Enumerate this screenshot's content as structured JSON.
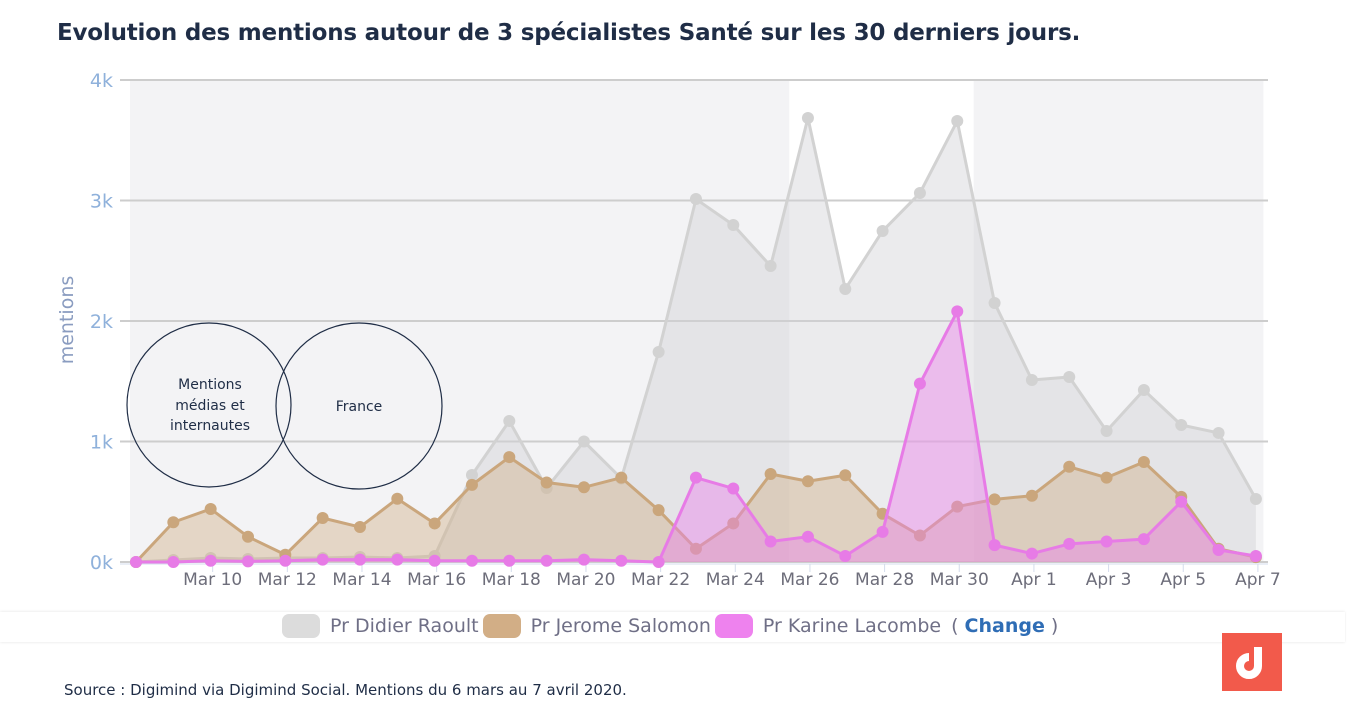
{
  "title": "Evolution des mentions autour de 3 spécialistes Santé sur les 30 derniers jours.",
  "venn": {
    "left_lines": [
      "Mentions",
      "médias et",
      "internautes"
    ],
    "right_label": "France"
  },
  "legend": {
    "change_open": "(",
    "change_label": "Change",
    "change_close": ")"
  },
  "source": "Source : Digimind via Digimind Social. Mentions du 6 mars au 7 avril 2020.",
  "logo_icon": "digimind-logo-icon",
  "chart_data": {
    "type": "area",
    "title": "Evolution des mentions autour de 3 spécialistes Santé sur les 30 derniers jours.",
    "xlabel": "",
    "ylabel": "mentions",
    "ylim": [
      0,
      4000
    ],
    "yticks": [
      0,
      1000,
      2000,
      3000,
      4000
    ],
    "ytick_labels": [
      "0k",
      "1k",
      "2k",
      "3k",
      "4k"
    ],
    "grid": true,
    "legend_position": "bottom",
    "x": [
      "Mar 8",
      "Mar 9",
      "Mar 10",
      "Mar 11",
      "Mar 12",
      "Mar 13",
      "Mar 14",
      "Mar 15",
      "Mar 16",
      "Mar 17",
      "Mar 18",
      "Mar 19",
      "Mar 20",
      "Mar 21",
      "Mar 22",
      "Mar 23",
      "Mar 24",
      "Mar 25",
      "Mar 26",
      "Mar 27",
      "Mar 28",
      "Mar 29",
      "Mar 30",
      "Mar 31",
      "Apr 1",
      "Apr 2",
      "Apr 3",
      "Apr 4",
      "Apr 5",
      "Apr 6",
      "Apr 7"
    ],
    "xtick_labels": [
      "Mar 10",
      "Mar 12",
      "Mar 14",
      "Mar 16",
      "Mar 18",
      "Mar 20",
      "Mar 22",
      "Mar 24",
      "Mar 26",
      "Mar 28",
      "Mar 30",
      "Apr 1",
      "Apr 3",
      "Apr 5",
      "Apr 7"
    ],
    "xtick_indices": [
      2,
      4,
      6,
      8,
      10,
      12,
      14,
      16,
      18,
      20,
      22,
      24,
      26,
      28,
      30
    ],
    "weekend_bands": [
      [
        0,
        17.5
      ],
      [
        22.6,
        30.2
      ]
    ],
    "series": [
      {
        "name": "Pr Didier Raoult",
        "color": "#d9d9d9",
        "line_color": "#d2d2d2",
        "values": [
          0,
          17,
          33,
          25,
          33,
          33,
          42,
          33,
          50,
          722,
          1170,
          614,
          1000,
          693,
          1743,
          3012,
          2797,
          2456,
          3685,
          2266,
          2747,
          3062,
          3660,
          2149,
          1510,
          1535,
          1087,
          1427,
          1137,
          1071,
          523
        ]
      },
      {
        "name": "Pr Jerome Salomon",
        "color": "#d0ad86",
        "line_color": "#caa67c",
        "values": [
          0,
          330,
          440,
          210,
          60,
          365,
          290,
          525,
          320,
          640,
          870,
          660,
          620,
          700,
          430,
          110,
          320,
          730,
          670,
          720,
          400,
          220,
          460,
          520,
          550,
          790,
          700,
          830,
          540,
          110,
          40
        ]
      },
      {
        "name": "Pr Karine Lacombe",
        "color": "#ee82ee",
        "line_color": "#e77be6",
        "values": [
          0,
          0,
          10,
          5,
          10,
          20,
          20,
          20,
          10,
          10,
          10,
          10,
          20,
          10,
          0,
          700,
          610,
          170,
          210,
          50,
          250,
          1480,
          2080,
          140,
          70,
          150,
          170,
          190,
          500,
          100,
          50
        ]
      }
    ]
  }
}
